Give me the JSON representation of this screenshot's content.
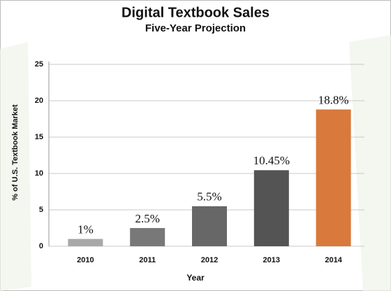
{
  "chart_data": {
    "type": "bar",
    "title": "Digital Textbook Sales",
    "subtitle": "Five-Year Projection",
    "x_label": "Year",
    "y_label": "% of U.S. Textbook Market",
    "categories": [
      "2010",
      "2011",
      "2012",
      "2013",
      "2014"
    ],
    "values": [
      1,
      2.5,
      5.5,
      10.45,
      18.8
    ],
    "value_labels": [
      "1%",
      "2.5%",
      "5.5%",
      "10.45%",
      "18.8%"
    ],
    "colors": [
      "#a8a8a8",
      "#787878",
      "#676767",
      "#545454",
      "#d9793b"
    ],
    "ylim": [
      0,
      25
    ],
    "yticks": [
      0,
      5,
      10,
      15,
      20,
      25
    ],
    "grid": true
  }
}
